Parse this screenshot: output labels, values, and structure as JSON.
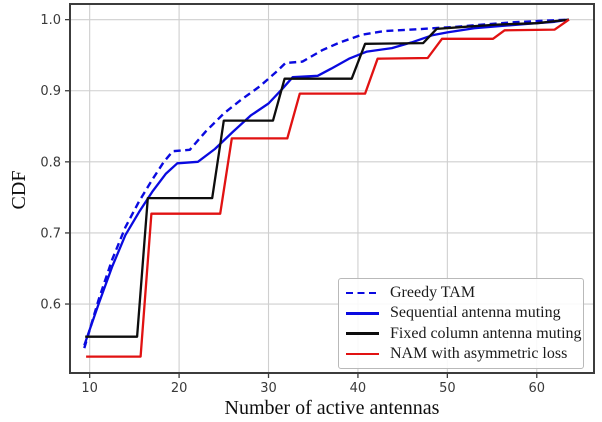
{
  "figure": {
    "background": "#ffffff"
  },
  "chart_data": {
    "type": "line",
    "title": "",
    "xlabel": "Number of active antennas",
    "ylabel": "CDF",
    "xlim": [
      7.8,
      66.4
    ],
    "ylim": [
      0.503,
      1.022
    ],
    "xticks": [
      10,
      20,
      30,
      40,
      50,
      60
    ],
    "yticks": [
      0.6,
      0.7,
      0.8,
      0.9,
      1.0
    ],
    "grid": true,
    "grid_color": "#cfcfcf",
    "axis_color": "#3c3c3c",
    "tick_label_color": "#3a3a3a",
    "legend_position": "lower right",
    "legend_border_color": "#b9b9b9",
    "series": [
      {
        "name": "Greedy TAM",
        "color": "#0a0ae0",
        "line_style": "dashed",
        "width": 2.4,
        "points": [
          [
            9.4,
            0.538
          ],
          [
            11,
            0.606
          ],
          [
            12.5,
            0.662
          ],
          [
            14,
            0.708
          ],
          [
            15.5,
            0.744
          ],
          [
            17,
            0.775
          ],
          [
            18.3,
            0.8
          ],
          [
            19.3,
            0.815
          ],
          [
            21.2,
            0.817
          ],
          [
            23,
            0.843
          ],
          [
            25,
            0.868
          ],
          [
            27,
            0.888
          ],
          [
            29,
            0.906
          ],
          [
            31,
            0.928
          ],
          [
            31.9,
            0.939
          ],
          [
            33.8,
            0.941
          ],
          [
            36,
            0.957
          ],
          [
            38,
            0.968
          ],
          [
            40.5,
            0.979
          ],
          [
            43,
            0.984
          ],
          [
            46,
            0.986
          ],
          [
            48.5,
            0.988
          ],
          [
            51,
            0.99
          ],
          [
            54,
            0.993
          ],
          [
            57,
            0.996
          ],
          [
            60,
            0.998
          ],
          [
            63.6,
            1.0
          ]
        ]
      },
      {
        "name": "Sequential antenna muting",
        "color": "#0a0ae0",
        "line_style": "solid",
        "width": 2.3,
        "points": [
          [
            9.4,
            0.542
          ],
          [
            11,
            0.6
          ],
          [
            12.5,
            0.652
          ],
          [
            14,
            0.697
          ],
          [
            15.5,
            0.729
          ],
          [
            17,
            0.758
          ],
          [
            18.5,
            0.783
          ],
          [
            19.8,
            0.798
          ],
          [
            22.1,
            0.8
          ],
          [
            24,
            0.818
          ],
          [
            26,
            0.842
          ],
          [
            28,
            0.865
          ],
          [
            30,
            0.882
          ],
          [
            31.5,
            0.902
          ],
          [
            32.7,
            0.919
          ],
          [
            35.5,
            0.921
          ],
          [
            37,
            0.931
          ],
          [
            39,
            0.945
          ],
          [
            41,
            0.955
          ],
          [
            43.8,
            0.96
          ],
          [
            46,
            0.968
          ],
          [
            48.3,
            0.978
          ],
          [
            50,
            0.982
          ],
          [
            53,
            0.988
          ],
          [
            56,
            0.991
          ],
          [
            59,
            0.994
          ],
          [
            62,
            0.997
          ],
          [
            63.6,
            1.0
          ]
        ]
      },
      {
        "name": "Fixed column antenna muting",
        "color": "#0d0d0d",
        "line_style": "solid",
        "width": 2.3,
        "points": [
          [
            9.5,
            0.554
          ],
          [
            15.3,
            0.554
          ],
          [
            16.5,
            0.749
          ],
          [
            23.7,
            0.749
          ],
          [
            25.0,
            0.858
          ],
          [
            30.5,
            0.858
          ],
          [
            31.8,
            0.917
          ],
          [
            39.3,
            0.917
          ],
          [
            40.8,
            0.966
          ],
          [
            47.3,
            0.967
          ],
          [
            48.8,
            0.987
          ],
          [
            52,
            0.99
          ],
          [
            55.5,
            0.993
          ],
          [
            60,
            0.995
          ],
          [
            63.6,
            1.0
          ]
        ]
      },
      {
        "name": "NAM with asymmetric loss",
        "color": "#e11212",
        "line_style": "solid",
        "width": 2.3,
        "points": [
          [
            9.6,
            0.526
          ],
          [
            15.7,
            0.526
          ],
          [
            16.9,
            0.727
          ],
          [
            24.6,
            0.727
          ],
          [
            25.9,
            0.833
          ],
          [
            32.1,
            0.833
          ],
          [
            33.5,
            0.896
          ],
          [
            40.8,
            0.896
          ],
          [
            42.2,
            0.945
          ],
          [
            47.8,
            0.946
          ],
          [
            49.4,
            0.973
          ],
          [
            55.1,
            0.973
          ],
          [
            56.4,
            0.985
          ],
          [
            62.0,
            0.986
          ],
          [
            63.6,
            1.0
          ]
        ]
      }
    ]
  }
}
